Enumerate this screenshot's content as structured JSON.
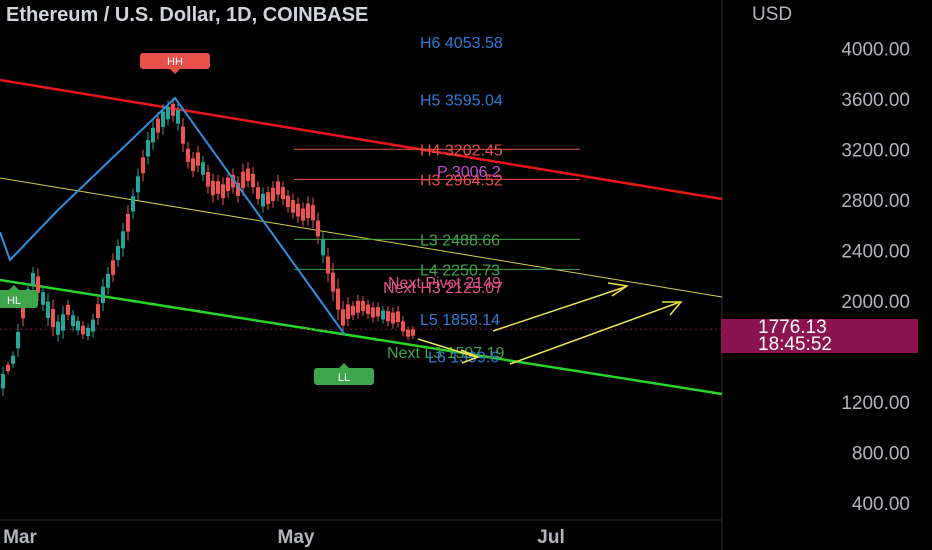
{
  "chart_data": {
    "type": "candlestick",
    "title": "Ethereum / U.S. Dollar, 1D, COINBASE",
    "currency": "USD",
    "y_ticks": [
      "4000.00",
      "3600.00",
      "3200.00",
      "2800.00",
      "2400.00",
      "2000.00",
      "1200.00",
      "800.00",
      "400.00"
    ],
    "x_ticks": [
      "Mar",
      "May",
      "Jul"
    ],
    "ylim": [
      220,
      4260
    ],
    "current_price": "1776.13",
    "countdown": "18:45:52",
    "pivot_levels": [
      {
        "label": "H6 4053.58",
        "value": 4053.58,
        "color": "#2f7bd6",
        "kind": "pivot"
      },
      {
        "label": "H5 3595.04",
        "value": 3595.04,
        "color": "#2f7bd6",
        "kind": "pivot"
      },
      {
        "label": "H4 3202.45",
        "value": 3202.45,
        "color": "#e8514a",
        "kind": "pivot"
      },
      {
        "label": "P 3006.2",
        "value": 3030,
        "color": "#c34bd2",
        "kind": "pivot"
      },
      {
        "label": "H3 2964.52",
        "value": 2964.52,
        "color": "#e8514a",
        "kind": "pivot"
      },
      {
        "label": "L3 2488.66",
        "value": 2488.66,
        "color": "#3fa54a",
        "kind": "pivot"
      },
      {
        "label": "L4 2250.73",
        "value": 2250.73,
        "color": "#3fa54a",
        "kind": "pivot"
      },
      {
        "label": "Next Pivot 2149",
        "value": 2149,
        "color": "#e0508c",
        "kind": "pivot"
      },
      {
        "label": "Next H3 2125.07",
        "value": 2110,
        "color": "#e0508c",
        "kind": "pivot"
      },
      {
        "label": "L5 1858.14",
        "value": 1858.14,
        "color": "#2f7bd6",
        "kind": "pivot"
      },
      {
        "label": "Next L3 1597.19",
        "value": 1597.19,
        "color": "#3fa54a",
        "kind": "pivot"
      },
      {
        "label": "L6 1399.6",
        "value": 1560,
        "color": "#2f7bd6",
        "kind": "pivot"
      }
    ],
    "swing_labels": [
      {
        "text": "HH",
        "color": "#e8514a"
      },
      {
        "text": "HL",
        "color": "#3fa54a"
      },
      {
        "text": "LL",
        "color": "#3fa54a"
      }
    ],
    "colors": {
      "up": "#26a69a",
      "down": "#ef5350",
      "channel_top": "#e8151b",
      "channel_bottom": "#27d627",
      "midline": "#d6d04a",
      "zigzag": "#2f8fe0",
      "projection": "#f2e24b",
      "badge": "#8b1450"
    }
  }
}
